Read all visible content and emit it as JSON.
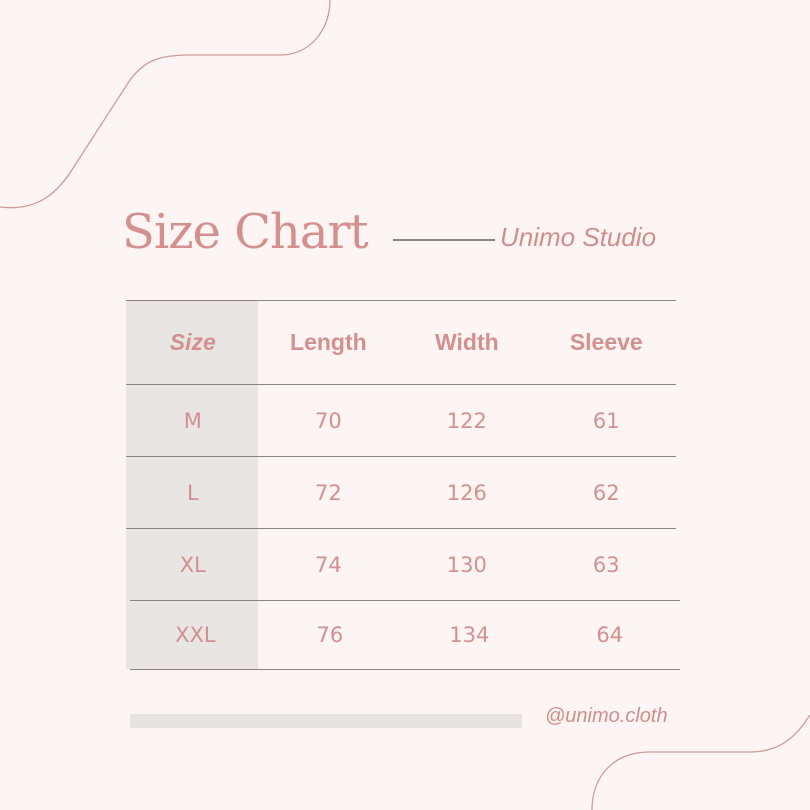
{
  "header": {
    "title": "Size Chart",
    "brand": "Unimo Studio"
  },
  "table": {
    "columns": [
      "Size",
      "Length",
      "Width",
      "Sleeve"
    ],
    "rows": [
      [
        "M",
        "70",
        "122",
        "61"
      ],
      [
        "L",
        "72",
        "126",
        "62"
      ],
      [
        "XL",
        "74",
        "130",
        "63"
      ],
      [
        "XXL",
        "76",
        "134",
        "64"
      ]
    ]
  },
  "footer": {
    "handle": "@unimo.cloth"
  },
  "colors": {
    "background": "#fcf5f3",
    "accent": "#d08d8d",
    "size_column": "#e9e5e2",
    "rule": "#8d8181"
  }
}
